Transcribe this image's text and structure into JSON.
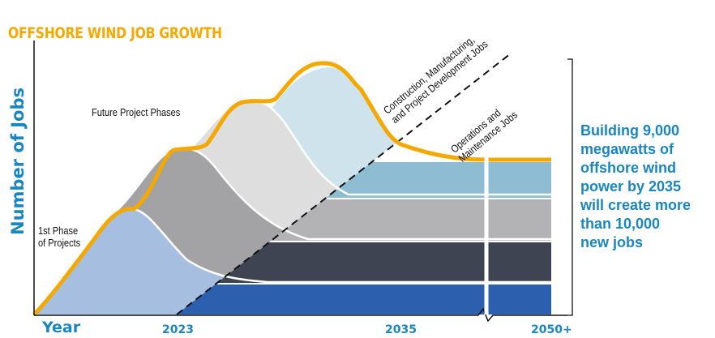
{
  "chart_data": {
    "type": "area",
    "title": "OFFSHORE WIND JOB GROWTH",
    "ylabel": "Number of Jobs",
    "xlabel": "Year",
    "x_ticks": [
      "2023",
      "2035",
      "2050+"
    ],
    "annotations": {
      "phase1": "1st Phase\nof Projects",
      "future": "Future Project Phases",
      "construction": "Construction, Manufacturing,\nand Project Development Jobs",
      "operations": "Operations and\nMaintenance Jobs"
    },
    "callout": "Building 9,000\nmegawatts of\noffshore wind\npower by 2035\nwill create more\nthan 10,000\nnew jobs",
    "colors": {
      "accent": "#f5a800",
      "text_blue": "#1a86c0",
      "phase1": "#a6bedf",
      "phase2": "#a3a3a6",
      "phase3": "#dedede",
      "phase4": "#cfe3ec",
      "band_top": "#8dbcd3",
      "band2": "#b3b3b6",
      "band3": "#3e4452",
      "band4": "#2c5fae"
    }
  }
}
